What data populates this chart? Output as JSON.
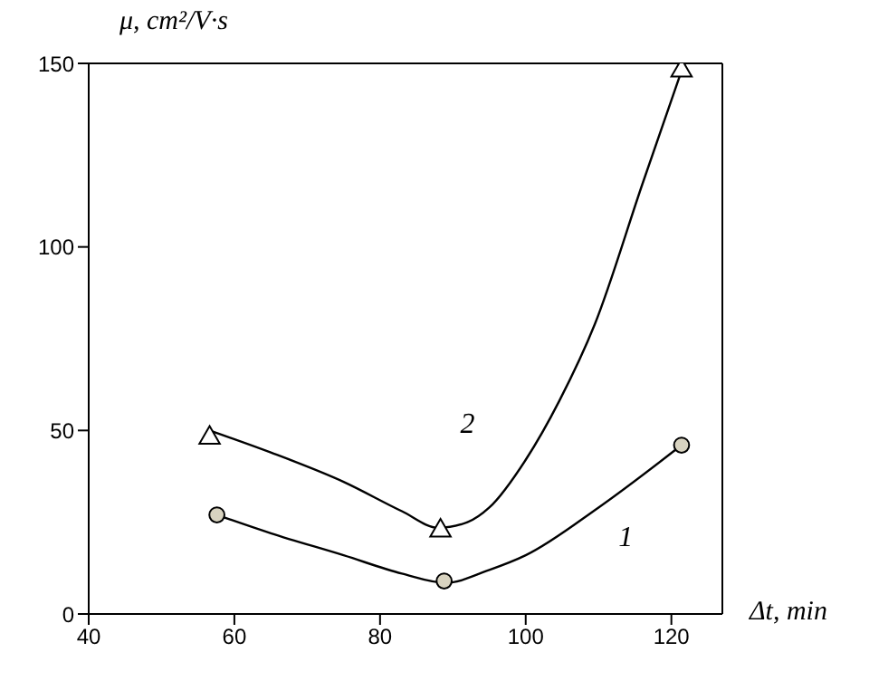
{
  "chart_data": {
    "type": "scatter",
    "xlabel": "Δt, min",
    "ylabel": "μ, cm²/V·s",
    "xlim": [
      40,
      127
    ],
    "xticks": [
      40,
      60,
      80,
      100,
      120
    ],
    "ylim": [
      0,
      150
    ],
    "yticks": [
      0,
      50,
      100,
      150
    ],
    "series": [
      {
        "type": "line",
        "name": "1",
        "color": "#000000",
        "marker": "none",
        "x": [
          57.6,
          65,
          75,
          83,
          89,
          95,
          100,
          110,
          121.4
        ],
        "values": [
          27,
          22,
          16,
          11,
          8.5,
          12,
          16,
          29,
          46
        ]
      },
      {
        "type": "line",
        "name": "2",
        "color": "#000000",
        "marker": "none",
        "x": [
          56.6,
          65,
          75,
          83,
          88,
          92,
          95,
          100,
          104.6,
          109.5,
          116,
          121.4
        ],
        "values": [
          50,
          44,
          36,
          28,
          23.5,
          25,
          29,
          42,
          58,
          79,
          117,
          148
        ]
      },
      {
        "color": "#d8d3c0",
        "marker": "circle",
        "x": [
          57.6,
          88.8,
          121.4
        ],
        "values": [
          27,
          9,
          46
        ]
      },
      {
        "color": "#ffffff",
        "marker": "triangle",
        "x": [
          56.6,
          88.3,
          121.4
        ],
        "values": [
          48,
          22.7,
          148
        ]
      }
    ]
  }
}
